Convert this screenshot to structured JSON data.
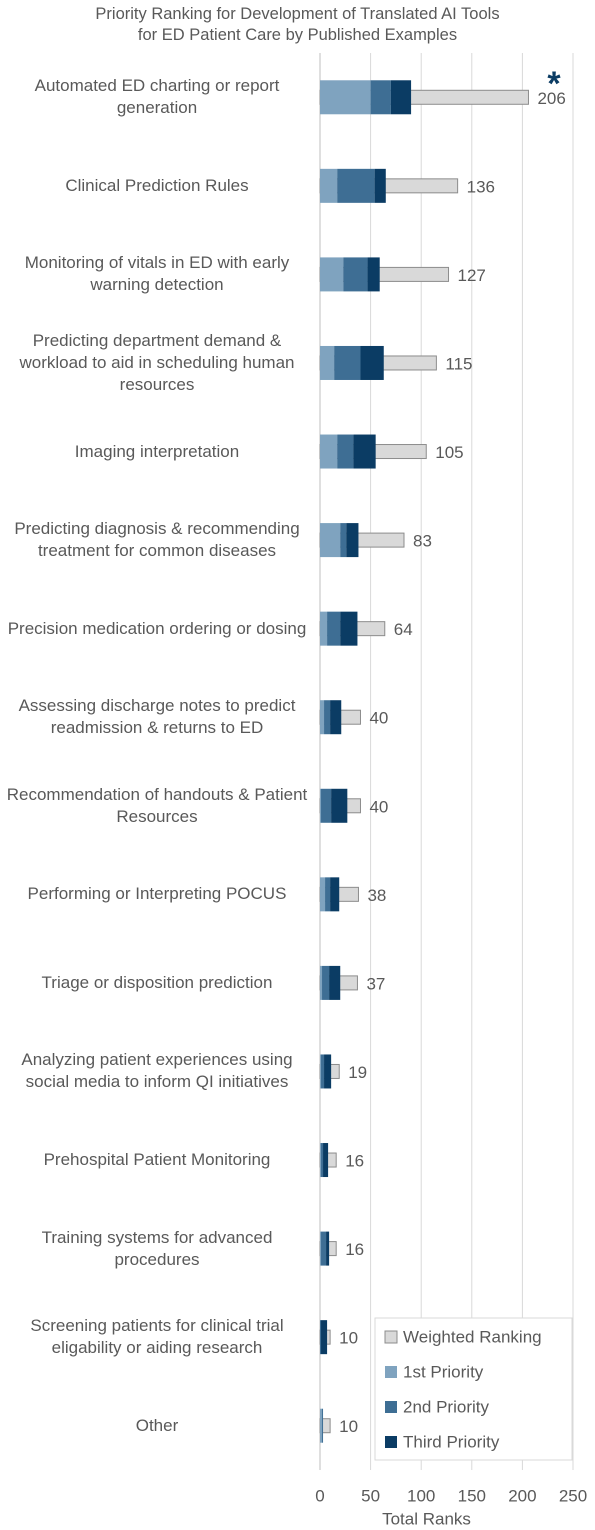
{
  "chart_data": {
    "type": "bar",
    "title": [
      "Priority Ranking for Development of Translated AI Tools",
      "for ED Patient Care by Published Examples"
    ],
    "annotation": "*",
    "x_label": "Total Ranks",
    "categories": [
      "Automated ED charting or report generation",
      "Clinical Prediction Rules",
      "Monitoring of vitals in ED with early warning detection",
      "Predicting department demand & workload to aid in scheduling human resources",
      "Imaging interpretation",
      "Predicting diagnosis & recommending treatment for common diseases",
      "Precision medication ordering or dosing",
      "Assessing discharge notes to predict readmission & returns to ED",
      "Recommendation of handouts & Patient Resources",
      "Performing or Interpreting POCUS",
      "Triage or disposition prediction",
      "Analyzing patient experiences using social media to inform QI initiatives",
      "Prehospital Patient Monitoring",
      "Training systems for advanced procedures",
      "Screening patients for clinical trial eligability or aiding research",
      "Other"
    ],
    "series": [
      {
        "name": "Weighted Ranking",
        "color": "#d9d9d9",
        "values": [
          206,
          136,
          127,
          115,
          105,
          83,
          64,
          40,
          40,
          38,
          37,
          19,
          16,
          16,
          10,
          10
        ]
      },
      {
        "name": "1st Priority",
        "color": "#7fa3bf",
        "values": [
          50,
          17,
          23,
          14,
          17,
          20,
          7,
          4,
          1,
          5,
          2,
          1,
          1,
          1,
          0,
          2
        ]
      },
      {
        "name": "2nd Priority",
        "color": "#3e6e94",
        "values": [
          20,
          37,
          24,
          26,
          16,
          6,
          13,
          6,
          10,
          5,
          7,
          3,
          2,
          5,
          1,
          1
        ]
      },
      {
        "name": "Third Priority",
        "color": "#0b3c64",
        "values": [
          20,
          11,
          12,
          23,
          22,
          12,
          17,
          11,
          16,
          9,
          11,
          7,
          5,
          3,
          6,
          0
        ]
      }
    ],
    "xlim": [
      0,
      250
    ],
    "xticks": [
      0,
      50,
      100,
      150,
      200,
      250
    ],
    "grid": true,
    "legend": "lower right"
  }
}
